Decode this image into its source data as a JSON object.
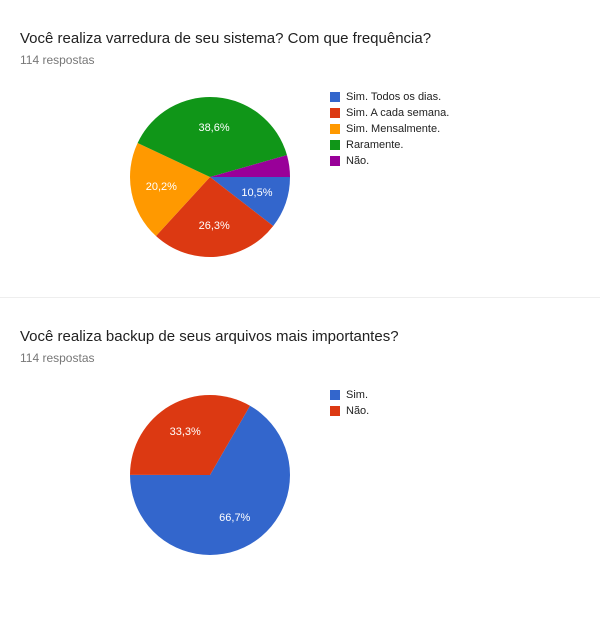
{
  "charts": [
    {
      "title": "Você realiza varredura de seu sistema? Com que frequência?",
      "respostas": "114 respostas",
      "type": "pie",
      "radius": 80,
      "start_angle": 0,
      "slices": [
        {
          "label": "Sim. Todos os dias.",
          "value": 10.5,
          "value_label": "10,5%",
          "color": "#3366cc",
          "show_label": true
        },
        {
          "label": "Sim. A cada semana.",
          "value": 26.3,
          "value_label": "26,3%",
          "color": "#dc3912",
          "show_label": true
        },
        {
          "label": "Sim. Mensalmente.",
          "value": 20.2,
          "value_label": "20,2%",
          "color": "#ff9900",
          "show_label": true
        },
        {
          "label": "Raramente.",
          "value": 38.6,
          "value_label": "38,6%",
          "color": "#109618",
          "show_label": true
        },
        {
          "label": "Não.",
          "value": 4.4,
          "value_label": "",
          "color": "#990099",
          "show_label": false
        }
      ]
    },
    {
      "title": "Você realiza backup de seus arquivos mais importantes?",
      "respostas": "114 respostas",
      "type": "pie",
      "radius": 80,
      "start_angle": -60,
      "slices": [
        {
          "label": "Sim.",
          "value": 66.7,
          "value_label": "66,7%",
          "color": "#3366cc",
          "show_label": true
        },
        {
          "label": "Não.",
          "value": 33.3,
          "value_label": "33,3%",
          "color": "#dc3912",
          "show_label": true
        }
      ]
    }
  ]
}
